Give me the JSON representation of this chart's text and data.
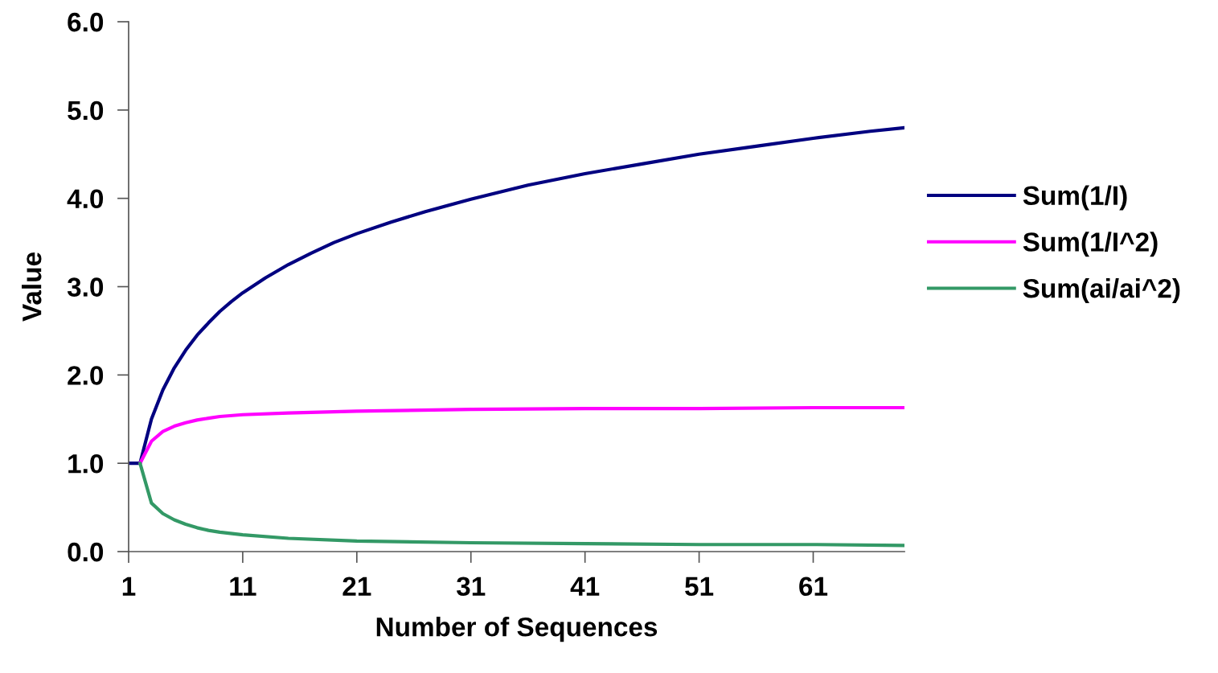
{
  "chart_data": {
    "type": "line",
    "xlabel": "Number of Sequences",
    "ylabel": "Value",
    "xlim": [
      1,
      69
    ],
    "xticks": [
      1,
      11,
      21,
      31,
      41,
      51,
      61
    ],
    "ylim": [
      0,
      6
    ],
    "yticks": [
      {
        "value": 0,
        "label": "0.0"
      },
      {
        "value": 1,
        "label": "1.0"
      },
      {
        "value": 2,
        "label": "2.0"
      },
      {
        "value": 3,
        "label": "3.0"
      },
      {
        "value": 4,
        "label": "4.0"
      },
      {
        "value": 5,
        "label": "5.0"
      },
      {
        "value": 6,
        "label": "6.0"
      }
    ],
    "grid": false,
    "legend": "right",
    "marker": "none",
    "line_style": "solid",
    "series": [
      {
        "name": "Sum(1/I)",
        "color": "#000080",
        "x": [
          1,
          2,
          3,
          4,
          5,
          6,
          7,
          8,
          9,
          10,
          11,
          13,
          15,
          17,
          19,
          21,
          24,
          27,
          31,
          36,
          41,
          46,
          51,
          56,
          61,
          66,
          69
        ],
        "values": [
          1.0,
          1.0,
          1.5,
          1.83,
          2.08,
          2.28,
          2.45,
          2.59,
          2.72,
          2.83,
          2.93,
          3.1,
          3.25,
          3.38,
          3.5,
          3.6,
          3.73,
          3.85,
          3.99,
          4.15,
          4.28,
          4.39,
          4.5,
          4.59,
          4.68,
          4.76,
          4.8
        ]
      },
      {
        "name": "Sum(1/I^2)",
        "color": "#ff00ff",
        "x": [
          2,
          3,
          4,
          5,
          6,
          7,
          8,
          9,
          11,
          15,
          21,
          31,
          41,
          51,
          61,
          69
        ],
        "values": [
          1.0,
          1.25,
          1.36,
          1.42,
          1.46,
          1.49,
          1.51,
          1.53,
          1.55,
          1.57,
          1.59,
          1.61,
          1.62,
          1.62,
          1.63,
          1.63
        ]
      },
      {
        "name": "Sum(ai/ai^2)",
        "color": "#339966",
        "x": [
          2,
          3,
          4,
          5,
          6,
          7,
          8,
          9,
          11,
          15,
          21,
          31,
          41,
          51,
          61,
          69
        ],
        "values": [
          1.0,
          0.55,
          0.43,
          0.36,
          0.31,
          0.27,
          0.24,
          0.22,
          0.19,
          0.15,
          0.12,
          0.1,
          0.09,
          0.08,
          0.08,
          0.07
        ]
      }
    ]
  }
}
